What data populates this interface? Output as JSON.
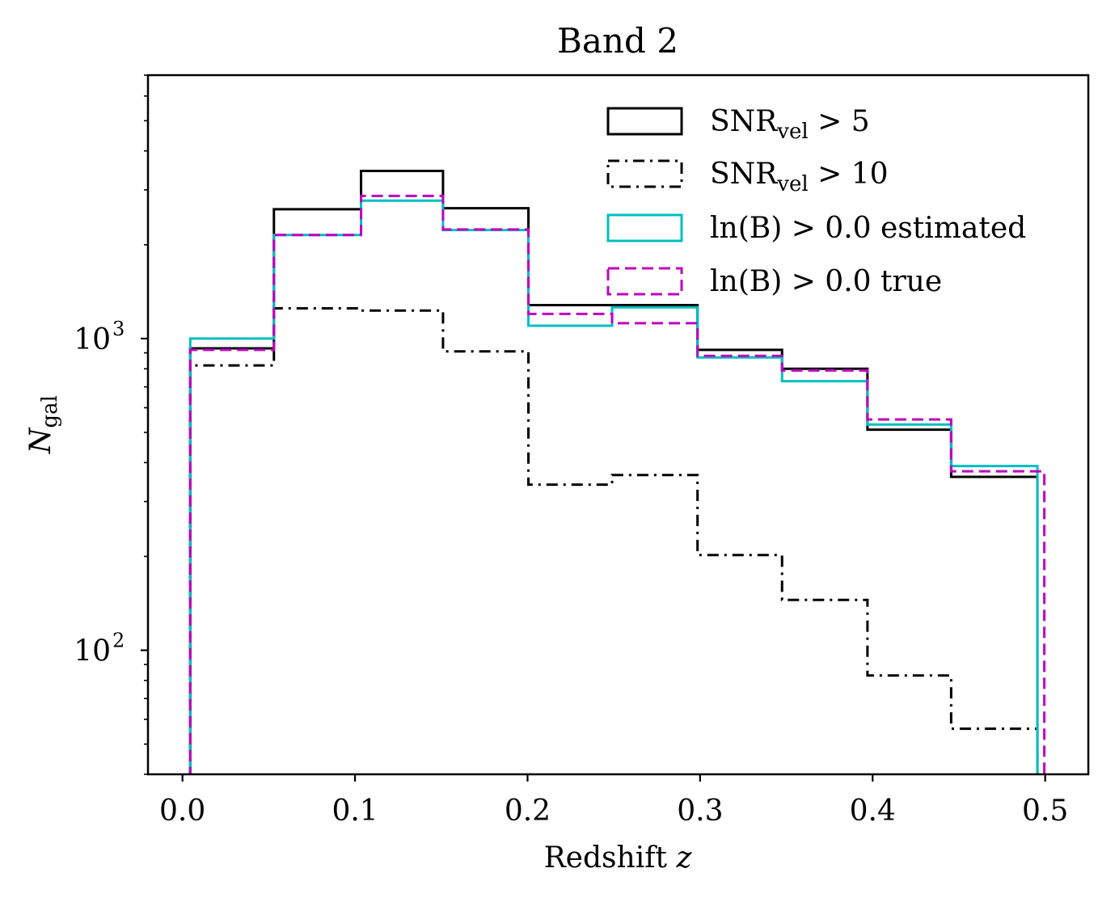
{
  "chart_data": {
    "type": "step-histogram",
    "title": "Band 2",
    "xlabel": "Redshift",
    "xlabel_var": "z",
    "ylabel_main": "N",
    "ylabel_sub": "gal",
    "yscale": "log",
    "xlim": [
      -0.02,
      0.525
    ],
    "ylim": [
      40,
      7000
    ],
    "x_ticks": [
      {
        "value": 0.0,
        "label": "0.0"
      },
      {
        "value": 0.1,
        "label": "0.1"
      },
      {
        "value": 0.2,
        "label": "0.2"
      },
      {
        "value": 0.3,
        "label": "0.3"
      },
      {
        "value": 0.4,
        "label": "0.4"
      },
      {
        "value": 0.5,
        "label": "0.5"
      }
    ],
    "y_ticks": [
      {
        "value": 100,
        "base": "10",
        "exp": "2"
      },
      {
        "value": 1000,
        "base": "10",
        "exp": "3"
      }
    ],
    "series": [
      {
        "name": "SNR_vel > 5",
        "legend": {
          "base": "SNR",
          "sub": "vel",
          "rest": " > 5"
        },
        "color": "#000000",
        "dash": "solid",
        "edges": [
          0.0045,
          0.053,
          0.1035,
          0.151,
          0.2005,
          0.249,
          0.2985,
          0.3475,
          0.397,
          0.4455,
          0.4955
        ],
        "values": [
          930,
          2600,
          3450,
          2620,
          1280,
          1280,
          920,
          800,
          510,
          360
        ]
      },
      {
        "name": "SNR_vel > 10",
        "legend": {
          "base": "SNR",
          "sub": "vel",
          "rest": " > 10"
        },
        "color": "#000000",
        "dash": "dashdot",
        "edges": [
          0.0045,
          0.053,
          0.1035,
          0.151,
          0.2005,
          0.249,
          0.2985,
          0.3475,
          0.397,
          0.4455,
          0.4955
        ],
        "values": [
          820,
          1250,
          1230,
          910,
          340,
          365,
          202,
          145,
          83,
          56
        ]
      },
      {
        "name": "ln(B) > 0.0 estimated",
        "legend": {
          "base": "ln(B) > 0.0 estimated",
          "sub": "",
          "rest": ""
        },
        "color": "#00bfbf",
        "dash": "solid",
        "edges": [
          0.0045,
          0.053,
          0.1035,
          0.151,
          0.2005,
          0.249,
          0.2985,
          0.3475,
          0.397,
          0.4455,
          0.4955
        ],
        "values": [
          1000,
          2150,
          2770,
          2230,
          1100,
          1260,
          870,
          730,
          530,
          390
        ]
      },
      {
        "name": "ln(B) > 0.0 true",
        "legend": {
          "base": "ln(B) > 0.0 true",
          "sub": "",
          "rest": ""
        },
        "color": "#bf00bf",
        "dash": "dashed",
        "edges": [
          0.0045,
          0.053,
          0.1035,
          0.151,
          0.2005,
          0.249,
          0.2985,
          0.3475,
          0.397,
          0.4455,
          0.4995
        ],
        "values": [
          920,
          2150,
          2870,
          2240,
          1200,
          1120,
          880,
          790,
          550,
          375
        ]
      }
    ],
    "legend_position": "top-right"
  }
}
